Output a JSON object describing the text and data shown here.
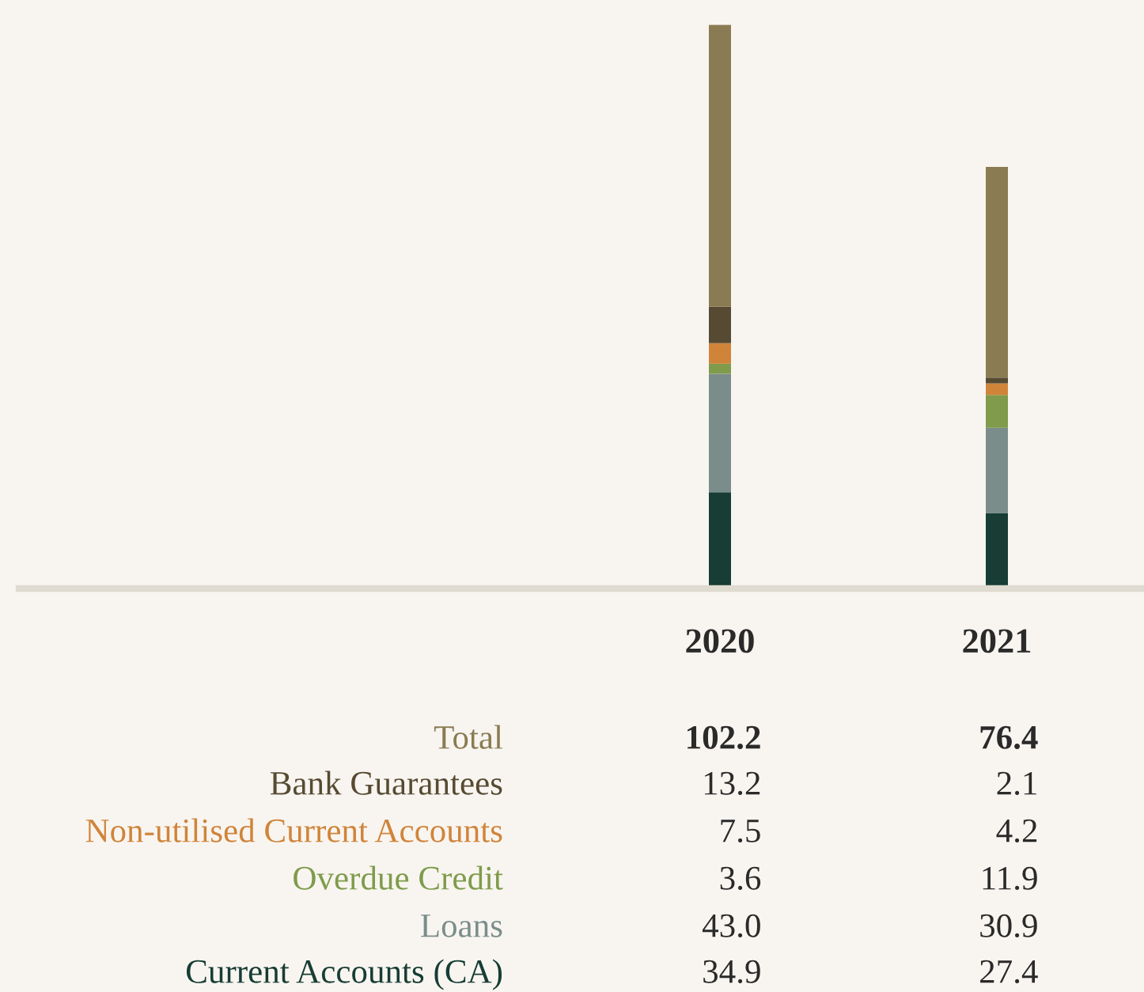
{
  "chart_data": {
    "type": "bar",
    "stacked": true,
    "categories": [
      "2020",
      "2021"
    ],
    "series": [
      {
        "name": "Current Accounts (CA)",
        "color": "#173d35",
        "values": [
          34.9,
          27.4
        ],
        "value_labels": [
          "34.9",
          "27.4"
        ]
      },
      {
        "name": "Loans",
        "color": "#7a8d8a",
        "values": [
          43.0,
          30.9
        ],
        "value_labels": [
          "43.0",
          "30.9"
        ]
      },
      {
        "name": "Overdue Credit",
        "color": "#7f9b4b",
        "values": [
          3.6,
          11.9
        ],
        "value_labels": [
          "3.6",
          "11.9"
        ]
      },
      {
        "name": "Non-utilised Current Accounts",
        "color": "#d0843a",
        "values": [
          7.5,
          4.2
        ],
        "value_labels": [
          "7.5",
          "4.2"
        ]
      },
      {
        "name": "Bank Guarantees",
        "color": "#564a32",
        "values": [
          13.2,
          2.1
        ],
        "value_labels": [
          "13.2",
          "2.1"
        ]
      },
      {
        "name": "Total",
        "color": "#8a7b52",
        "values": [
          102.2,
          76.4
        ],
        "value_labels": [
          "102.2",
          "76.4"
        ]
      }
    ],
    "grid": false,
    "legend": false
  }
}
